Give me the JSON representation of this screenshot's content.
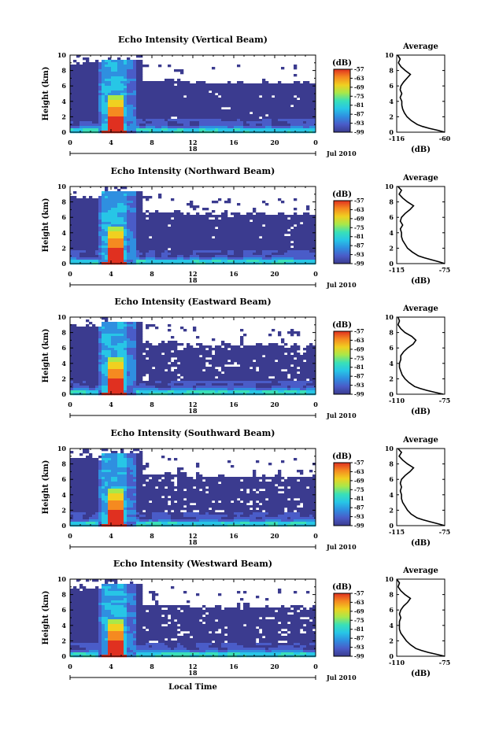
{
  "chart_data": [
    {
      "type": "heatmap",
      "title": "Echo Intensity (Vertical Beam)",
      "ylabel": "Height (km)",
      "xlabel": "",
      "x_ticks": [
        "0",
        "4",
        "8",
        "12",
        "16",
        "20",
        "0"
      ],
      "y_ticks": [
        "0",
        "2",
        "4",
        "6",
        "8",
        "10"
      ],
      "xlim": [
        0,
        24
      ],
      "ylim": [
        0,
        10
      ],
      "day_label": "18",
      "date_label": "Jul 2010",
      "colorbar": {
        "unit": "(dB)",
        "ticks": [
          "-57",
          "-63",
          "-69",
          "-75",
          "-81",
          "-87",
          "-93",
          "-99"
        ],
        "range": [
          -99,
          -57
        ]
      },
      "average_profile": {
        "title": "Average",
        "xlabel": "(dB)",
        "x_ticks": [
          "-116",
          "-60"
        ],
        "xlim": [
          -116,
          -60
        ],
        "height_km": [
          0,
          0.25,
          0.5,
          0.75,
          1,
          1.5,
          2,
          2.5,
          3,
          3.5,
          4,
          4.5,
          5,
          5.5,
          6,
          6.5,
          7,
          7.5,
          8,
          8.5,
          9,
          9.5,
          10
        ],
        "db": [
          -60,
          -68,
          -78,
          -86,
          -92,
          -99,
          -104,
          -107,
          -109,
          -110,
          -110,
          -112,
          -110,
          -112,
          -111,
          -108,
          -104,
          -100,
          -106,
          -111,
          -114,
          -112,
          -115
        ]
      }
    },
    {
      "type": "heatmap",
      "title": "Echo Intensity (Northward Beam)",
      "ylabel": "Height (km)",
      "xlabel": "",
      "x_ticks": [
        "0",
        "4",
        "8",
        "12",
        "16",
        "20",
        "0"
      ],
      "y_ticks": [
        "0",
        "2",
        "4",
        "6",
        "8",
        "10"
      ],
      "xlim": [
        0,
        24
      ],
      "ylim": [
        0,
        10
      ],
      "day_label": "18",
      "date_label": "Jul 2010",
      "colorbar": {
        "unit": "(dB)",
        "ticks": [
          "-57",
          "-63",
          "-69",
          "-75",
          "-81",
          "-87",
          "-93",
          "-99"
        ],
        "range": [
          -99,
          -57
        ]
      },
      "average_profile": {
        "title": "Average",
        "xlabel": "(dB)",
        "x_ticks": [
          "-115",
          "-75"
        ],
        "xlim": [
          -115,
          -75
        ],
        "height_km": [
          0,
          0.25,
          0.5,
          0.75,
          1,
          1.5,
          2,
          2.5,
          3,
          3.5,
          4,
          4.5,
          5,
          5.5,
          6,
          6.5,
          7,
          7.5,
          8,
          8.5,
          9,
          9.5,
          10
        ],
        "db": [
          -75,
          -80,
          -86,
          -92,
          -97,
          -102,
          -106,
          -108,
          -110,
          -111,
          -111,
          -112,
          -110,
          -112,
          -111,
          -108,
          -104,
          -101,
          -106,
          -110,
          -113,
          -111,
          -114
        ]
      }
    },
    {
      "type": "heatmap",
      "title": "Echo Intensity (Eastward Beam)",
      "ylabel": "Height (km)",
      "xlabel": "",
      "x_ticks": [
        "0",
        "4",
        "8",
        "12",
        "16",
        "20",
        "0"
      ],
      "y_ticks": [
        "0",
        "2",
        "4",
        "6",
        "8",
        "10"
      ],
      "xlim": [
        0,
        24
      ],
      "ylim": [
        0,
        10
      ],
      "day_label": "18",
      "date_label": "Jul 2010",
      "colorbar": {
        "unit": "(dB)",
        "ticks": [
          "-57",
          "-63",
          "-69",
          "-75",
          "-81",
          "-87",
          "-93",
          "-99"
        ],
        "range": [
          -99,
          -57
        ]
      },
      "average_profile": {
        "title": "Average",
        "xlabel": "(dB)",
        "x_ticks": [
          "-110",
          "-75"
        ],
        "xlim": [
          -110,
          -75
        ],
        "height_km": [
          0,
          0.25,
          0.5,
          0.75,
          1,
          1.5,
          2,
          2.5,
          3,
          3.5,
          4,
          4.5,
          5,
          5.5,
          6,
          6.5,
          7,
          7.5,
          8,
          8.5,
          9,
          9.5,
          10
        ],
        "db": [
          -76,
          -82,
          -88,
          -93,
          -97,
          -101,
          -104,
          -106,
          -107,
          -108,
          -108,
          -107,
          -107,
          -105,
          -102,
          -98,
          -96,
          -99,
          -104,
          -107,
          -109,
          -108,
          -109
        ]
      }
    },
    {
      "type": "heatmap",
      "title": "Echo Intensity (Southward Beam)",
      "ylabel": "Height (km)",
      "xlabel": "",
      "x_ticks": [
        "0",
        "4",
        "8",
        "12",
        "16",
        "20",
        "0"
      ],
      "y_ticks": [
        "0",
        "2",
        "4",
        "6",
        "8",
        "10"
      ],
      "xlim": [
        0,
        24
      ],
      "ylim": [
        0,
        10
      ],
      "day_label": "18",
      "date_label": "Jul 2010",
      "colorbar": {
        "unit": "(dB)",
        "ticks": [
          "-57",
          "-63",
          "-69",
          "-75",
          "-81",
          "-87",
          "-93",
          "-99"
        ],
        "range": [
          -99,
          -57
        ]
      },
      "average_profile": {
        "title": "Average",
        "xlabel": "(dB)",
        "x_ticks": [
          "-115",
          "-75"
        ],
        "xlim": [
          -115,
          -75
        ],
        "height_km": [
          0,
          0.25,
          0.5,
          0.75,
          1,
          1.5,
          2,
          2.5,
          3,
          3.5,
          4,
          4.5,
          5,
          5.5,
          6,
          6.5,
          7,
          7.5,
          8,
          8.5,
          9,
          9.5,
          10
        ],
        "db": [
          -75,
          -81,
          -87,
          -93,
          -98,
          -103,
          -106,
          -108,
          -110,
          -111,
          -111,
          -112,
          -111,
          -112,
          -111,
          -108,
          -104,
          -101,
          -106,
          -110,
          -113,
          -111,
          -114
        ]
      }
    },
    {
      "type": "heatmap",
      "title": "Echo Intensity (Westward Beam)",
      "ylabel": "Height (km)",
      "xlabel": "Local Time",
      "x_ticks": [
        "0",
        "4",
        "8",
        "12",
        "16",
        "20",
        "0"
      ],
      "y_ticks": [
        "0",
        "2",
        "4",
        "6",
        "8",
        "10"
      ],
      "xlim": [
        0,
        24
      ],
      "ylim": [
        0,
        10
      ],
      "day_label": "18",
      "date_label": "Jul 2010",
      "colorbar": {
        "unit": "(dB)",
        "ticks": [
          "-57",
          "-63",
          "-69",
          "-75",
          "-81",
          "-87",
          "-93",
          "-99"
        ],
        "range": [
          -99,
          -57
        ]
      },
      "average_profile": {
        "title": "Average",
        "xlabel": "(dB)",
        "x_ticks": [
          "-110",
          "-75"
        ],
        "xlim": [
          -110,
          -75
        ],
        "height_km": [
          0,
          0.25,
          0.5,
          0.75,
          1,
          1.5,
          2,
          2.5,
          3,
          3.5,
          4,
          4.5,
          5,
          5.5,
          6,
          6.5,
          7,
          7.5,
          8,
          8.5,
          9,
          9.5,
          10
        ],
        "db": [
          -75,
          -81,
          -87,
          -92,
          -96,
          -100,
          -103,
          -105,
          -107,
          -108,
          -108,
          -108,
          -107,
          -108,
          -107,
          -105,
          -102,
          -100,
          -104,
          -107,
          -109,
          -108,
          -110
        ]
      }
    }
  ],
  "colors": {
    "background": "#3d4483",
    "missing": "#ffffff",
    "scale": [
      "#3b3b8f",
      "#4a5cc8",
      "#2f8fe0",
      "#27c6e6",
      "#39e0b8",
      "#a8e84a",
      "#f0d020",
      "#f58a20",
      "#e03020"
    ]
  }
}
